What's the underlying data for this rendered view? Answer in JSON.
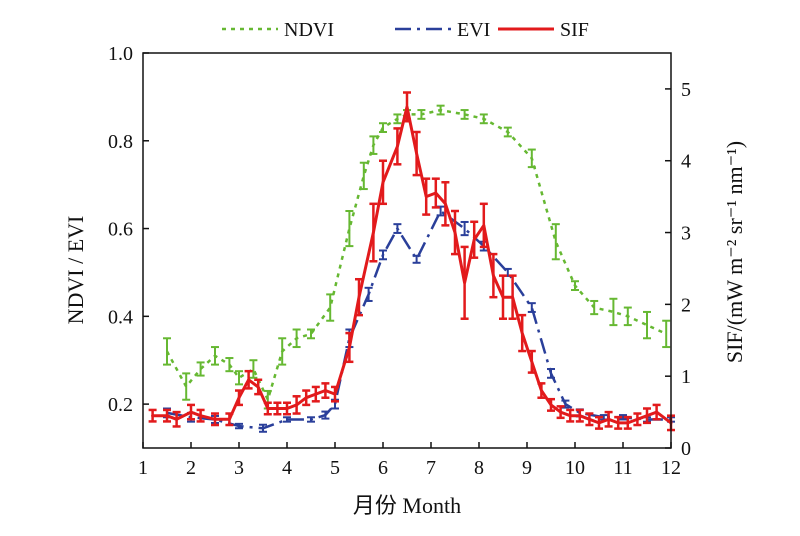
{
  "chart_data": {
    "type": "line",
    "xlabel": "月份 Month",
    "ylabel_left": "NDVI / EVI",
    "ylabel_right": "SIF/(mW m⁻² sr⁻¹ nm⁻¹)",
    "xlim": [
      1,
      12
    ],
    "ylim_left": [
      0.1,
      1.0
    ],
    "ylim_right": [
      0,
      5.5
    ],
    "x_ticks": [
      1,
      2,
      3,
      4,
      5,
      6,
      7,
      8,
      9,
      10,
      11,
      12
    ],
    "y_left_ticks": [
      "0.2",
      "0.4",
      "0.6",
      "0.8",
      "1.0"
    ],
    "y_right_ticks": [
      "0",
      "1",
      "2",
      "3",
      "4",
      "5"
    ],
    "grid": false,
    "legend_position": "top",
    "series": [
      {
        "name": "NDVI",
        "axis": "left",
        "color": "#66b832",
        "style": "dotted",
        "x": [
          1.5,
          1.9,
          2.2,
          2.5,
          2.8,
          3.0,
          3.3,
          3.6,
          3.9,
          4.2,
          4.5,
          4.9,
          5.3,
          5.6,
          5.8,
          6.0,
          6.3,
          6.5,
          6.8,
          7.2,
          7.7,
          8.1,
          8.6,
          9.1,
          9.6,
          10.0,
          10.4,
          10.8,
          11.1,
          11.5,
          11.9
        ],
        "y": [
          0.32,
          0.24,
          0.28,
          0.31,
          0.29,
          0.26,
          0.28,
          0.21,
          0.32,
          0.35,
          0.36,
          0.42,
          0.6,
          0.72,
          0.79,
          0.83,
          0.85,
          0.86,
          0.86,
          0.87,
          0.86,
          0.85,
          0.82,
          0.76,
          0.57,
          0.47,
          0.42,
          0.41,
          0.4,
          0.38,
          0.36
        ],
        "err": [
          0.03,
          0.03,
          0.015,
          0.02,
          0.015,
          0.015,
          0.02,
          0.02,
          0.03,
          0.02,
          0.01,
          0.03,
          0.04,
          0.03,
          0.02,
          0.01,
          0.01,
          0.01,
          0.01,
          0.01,
          0.01,
          0.01,
          0.01,
          0.02,
          0.04,
          0.01,
          0.015,
          0.03,
          0.02,
          0.03,
          0.03
        ]
      },
      {
        "name": "EVI",
        "axis": "left",
        "color": "#2a3f9a",
        "style": "dashdot",
        "x": [
          1.5,
          2.0,
          2.5,
          3.0,
          3.5,
          4.0,
          4.5,
          4.8,
          5.0,
          5.3,
          5.7,
          6.0,
          6.3,
          6.7,
          7.2,
          7.7,
          8.1,
          8.6,
          9.1,
          9.5,
          9.8,
          10.1,
          10.6,
          11.0,
          11.5,
          12.0
        ],
        "y": [
          0.18,
          0.17,
          0.165,
          0.15,
          0.145,
          0.165,
          0.165,
          0.175,
          0.2,
          0.35,
          0.45,
          0.54,
          0.6,
          0.53,
          0.64,
          0.6,
          0.56,
          0.5,
          0.42,
          0.27,
          0.2,
          0.18,
          0.17,
          0.17,
          0.165,
          0.165
        ],
        "err": [
          0.01,
          0.01,
          0.008,
          0.005,
          0.008,
          0.005,
          0.005,
          0.008,
          0.01,
          0.02,
          0.015,
          0.01,
          0.01,
          0.008,
          0.01,
          0.015,
          0.01,
          0.008,
          0.01,
          0.01,
          0.008,
          0.008,
          0.005,
          0.005,
          0.005,
          0.005
        ]
      },
      {
        "name": "SIF",
        "axis": "right",
        "color": "#e21a1c",
        "style": "solid",
        "x": [
          1.2,
          1.5,
          1.7,
          2.0,
          2.2,
          2.5,
          2.8,
          3.0,
          3.2,
          3.4,
          3.6,
          3.8,
          4.0,
          4.2,
          4.4,
          4.6,
          4.8,
          5.0,
          5.3,
          5.5,
          5.8,
          6.0,
          6.3,
          6.5,
          6.7,
          6.9,
          7.1,
          7.3,
          7.5,
          7.7,
          7.9,
          8.1,
          8.3,
          8.5,
          8.7,
          8.9,
          9.1,
          9.3,
          9.5,
          9.7,
          9.9,
          10.1,
          10.3,
          10.5,
          10.7,
          10.9,
          11.1,
          11.3,
          11.5,
          11.7,
          12.0
        ],
        "y": [
          0.45,
          0.45,
          0.4,
          0.5,
          0.45,
          0.4,
          0.4,
          0.7,
          0.95,
          0.85,
          0.55,
          0.55,
          0.55,
          0.6,
          0.7,
          0.75,
          0.8,
          0.75,
          1.4,
          2.1,
          3.0,
          3.7,
          4.2,
          4.75,
          4.1,
          3.5,
          3.55,
          3.4,
          3.0,
          2.3,
          2.9,
          3.1,
          2.4,
          2.1,
          2.1,
          1.6,
          1.2,
          0.8,
          0.6,
          0.5,
          0.45,
          0.45,
          0.4,
          0.35,
          0.4,
          0.35,
          0.35,
          0.4,
          0.45,
          0.5,
          0.35
        ],
        "err": [
          0.08,
          0.08,
          0.1,
          0.1,
          0.08,
          0.08,
          0.08,
          0.1,
          0.12,
          0.1,
          0.08,
          0.08,
          0.08,
          0.12,
          0.1,
          0.1,
          0.1,
          0.1,
          0.2,
          0.25,
          0.4,
          0.3,
          0.25,
          0.2,
          0.3,
          0.25,
          0.2,
          0.3,
          0.3,
          0.5,
          0.25,
          0.3,
          0.3,
          0.3,
          0.3,
          0.25,
          0.15,
          0.1,
          0.08,
          0.08,
          0.08,
          0.08,
          0.08,
          0.08,
          0.1,
          0.08,
          0.08,
          0.08,
          0.1,
          0.1,
          0.1
        ]
      }
    ]
  }
}
